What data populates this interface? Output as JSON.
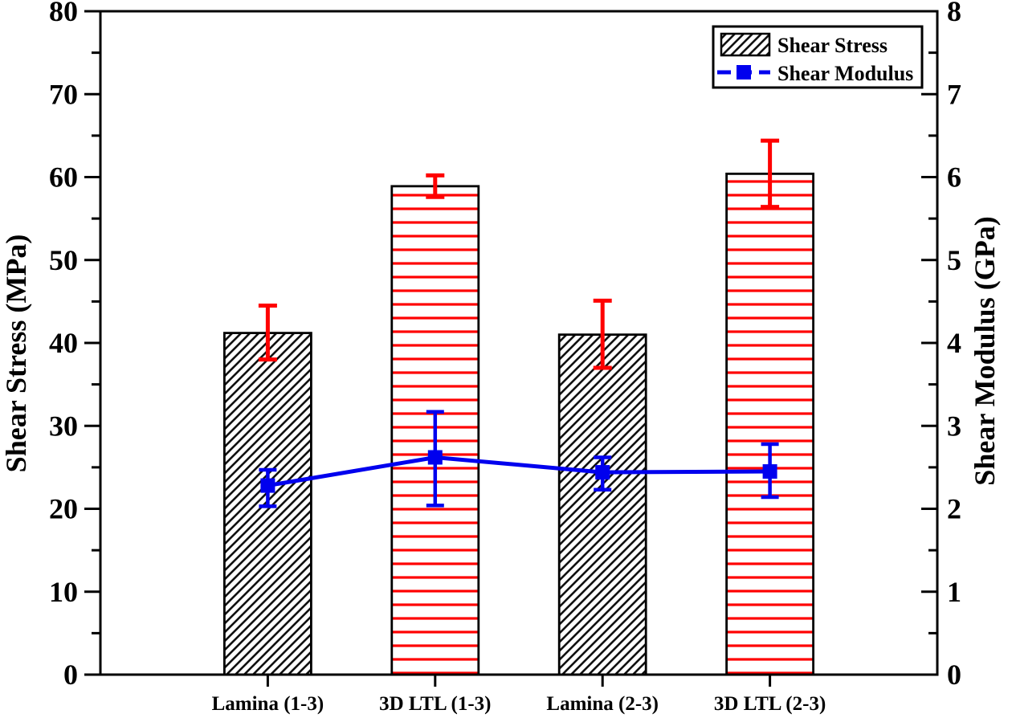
{
  "figure": {
    "description": "Dual-axis combo chart comparing shear stress bars and shear modulus line for lamina and 3D LTL composites"
  },
  "chart_data": {
    "type": "bar",
    "categories": [
      "Lamina (1-3)",
      "3D LTL (1-3)",
      "Lamina (2-3)",
      "3D LTL (2-3)"
    ],
    "series": [
      {
        "name": "Shear Stress",
        "plot_type": "bar",
        "axis": "left",
        "values": [
          41.2,
          58.9,
          41.0,
          60.4
        ],
        "error_upper": [
          44.5,
          60.2,
          45.1,
          64.4
        ],
        "error_lower": [
          38.0,
          57.6,
          37.0,
          56.4
        ],
        "bar_fill_styles": [
          "diagonal-hatch-black",
          "horizontal-lines-red",
          "diagonal-hatch-black",
          "horizontal-lines-red"
        ],
        "error_color": "#ff0000",
        "bar_edge_color": "#000000"
      },
      {
        "name": "Shear Modulus",
        "plot_type": "line",
        "axis": "right",
        "values": [
          2.28,
          2.62,
          2.44,
          2.45
        ],
        "error_upper": [
          2.47,
          3.17,
          2.62,
          2.78
        ],
        "error_lower": [
          2.03,
          2.04,
          2.23,
          2.14
        ],
        "color": "#0000ee",
        "marker": "square"
      }
    ],
    "left_axis": {
      "label": "Shear Stress (MPa)",
      "min": 0,
      "max": 80,
      "major_step": 10,
      "minor_step": 5,
      "tick_labels": [
        "0",
        "10",
        "20",
        "30",
        "40",
        "50",
        "60",
        "70",
        "80"
      ]
    },
    "right_axis": {
      "label": "Shear Modulus (GPa)",
      "min": 0,
      "max": 8,
      "major_step": 1,
      "minor_step": 0.5,
      "tick_labels": [
        "0",
        "1",
        "2",
        "3",
        "4",
        "5",
        "6",
        "7",
        "8"
      ]
    },
    "legend": {
      "position": "top-right",
      "entries": [
        {
          "label": "Shear Stress",
          "key": "hatched-box"
        },
        {
          "label": "Shear Modulus",
          "key": "blue-dash-square"
        }
      ]
    },
    "grid": false,
    "colors": {
      "background": "#ffffff",
      "axis": "#000000",
      "stress_error": "#ff0000",
      "red_hatch": "#ff0000",
      "black_hatch": "#111111",
      "modulus_blue": "#0000ee",
      "text": "#000000"
    }
  }
}
